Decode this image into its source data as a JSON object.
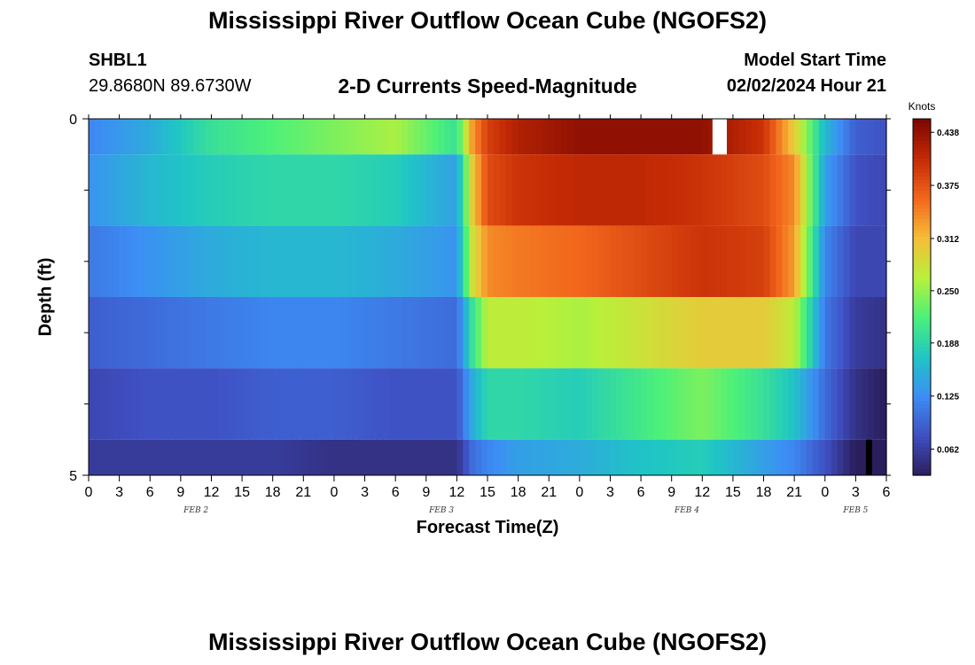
{
  "header": {
    "title": "Mississippi River Outflow Ocean Cube (NGOFS2)",
    "station": "SHBL1",
    "coords": "29.8680N  89.6730W",
    "subtitle": "2-D Currents Speed-Magnitude",
    "start_label": "Model Start Time",
    "start_value": "02/02/2024 Hour 21"
  },
  "footer": {
    "title": "Mississippi River Outflow Ocean Cube (NGOFS2)"
  },
  "chart_data": {
    "type": "heatmap",
    "title": "2-D Currents Speed-Magnitude",
    "xlabel": "Forecast Time(Z)",
    "ylabel": "Depth (ft)",
    "unit": "Knots",
    "x_tick_labels": [
      "0",
      "3",
      "6",
      "9",
      "12",
      "15",
      "18",
      "21",
      "0",
      "3",
      "6",
      "9",
      "12",
      "15",
      "18",
      "21",
      "0",
      "3",
      "6",
      "9",
      "12",
      "15",
      "18",
      "21",
      "0",
      "3",
      "6"
    ],
    "x_range_hours": [
      0,
      78
    ],
    "date_labels": [
      {
        "label": "FEB 2",
        "hour": 10.5
      },
      {
        "label": "FEB 3",
        "hour": 34.5
      },
      {
        "label": "FEB 4",
        "hour": 58.5
      },
      {
        "label": "FEB 5",
        "hour": 75
      }
    ],
    "y_range": [
      0,
      5
    ],
    "y_tick_labels": [
      "0",
      "5"
    ],
    "depth_bands": [
      {
        "top": 0.0,
        "bottom": 0.5
      },
      {
        "top": 0.5,
        "bottom": 1.5
      },
      {
        "top": 1.5,
        "bottom": 2.5
      },
      {
        "top": 2.5,
        "bottom": 3.5
      },
      {
        "top": 3.5,
        "bottom": 4.5
      },
      {
        "top": 4.5,
        "bottom": 5.0
      }
    ],
    "keypoints_hours": [
      0,
      6,
      12,
      18,
      24,
      30,
      36,
      37.5,
      39,
      42,
      48,
      54,
      60,
      66,
      69,
      72,
      75,
      78
    ],
    "keypoint_values": [
      [
        0.12,
        0.15,
        0.2,
        0.22,
        0.24,
        0.26,
        0.2,
        0.33,
        0.39,
        0.42,
        0.44,
        0.44,
        0.44,
        0.4,
        0.3,
        0.16,
        0.09,
        0.08
      ],
      [
        0.13,
        0.16,
        0.18,
        0.19,
        0.19,
        0.18,
        0.14,
        0.3,
        0.38,
        0.4,
        0.41,
        0.41,
        0.4,
        0.38,
        0.34,
        0.14,
        0.08,
        0.07
      ],
      [
        0.11,
        0.13,
        0.15,
        0.16,
        0.16,
        0.15,
        0.13,
        0.28,
        0.34,
        0.35,
        0.36,
        0.38,
        0.4,
        0.39,
        0.33,
        0.12,
        0.07,
        0.07
      ],
      [
        0.09,
        0.1,
        0.11,
        0.12,
        0.12,
        0.11,
        0.1,
        0.2,
        0.27,
        0.27,
        0.26,
        0.28,
        0.3,
        0.3,
        0.27,
        0.11,
        0.06,
        0.05
      ],
      [
        0.07,
        0.08,
        0.08,
        0.09,
        0.09,
        0.08,
        0.08,
        0.15,
        0.19,
        0.19,
        0.18,
        0.21,
        0.24,
        0.2,
        0.17,
        0.1,
        0.05,
        0.03
      ],
      [
        0.06,
        0.06,
        0.06,
        0.06,
        0.05,
        0.05,
        0.05,
        0.1,
        0.12,
        0.14,
        0.15,
        0.17,
        0.18,
        0.14,
        0.12,
        0.08,
        0.03,
        0.03
      ]
    ],
    "missing_cells": [
      {
        "band": 0,
        "from_hour": 61,
        "to_hour": 62.4
      },
      {
        "band": 5,
        "from_hour": 76,
        "to_hour": 76.6
      }
    ],
    "colorbar": {
      "label": "Knots",
      "ticks": [
        "0.062",
        "0.125",
        "0.188",
        "0.250",
        "0.312",
        "0.375",
        "0.438"
      ],
      "tick_values": [
        0.062,
        0.125,
        0.188,
        0.25,
        0.312,
        0.375,
        0.438
      ],
      "range": [
        0.031,
        0.454
      ]
    },
    "colors": [
      "#2b1e5c",
      "#3f4fc2",
      "#3d8df5",
      "#1fc6c4",
      "#4cf07a",
      "#b9f03a",
      "#f5bd38",
      "#f2661c",
      "#c42a05",
      "#7a0702"
    ]
  }
}
